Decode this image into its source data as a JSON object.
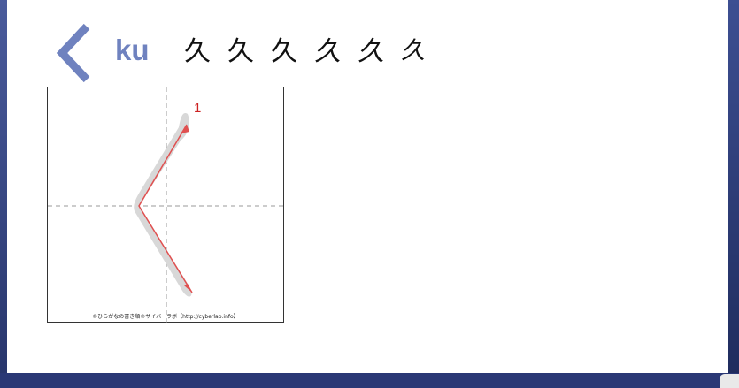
{
  "kana": {
    "character": "く",
    "romaji": "ku"
  },
  "variants": [
    "久",
    "久",
    "久",
    "久",
    "久",
    "久"
  ],
  "diagram": {
    "stroke_number": "1",
    "credit": "©ひらがなの書き順®サイバーラボ【http://cyberlab.info】"
  },
  "colors": {
    "accent": "#6f82bf",
    "stroke_arrow": "#e05050",
    "frame_blue": "#2d3d78"
  }
}
